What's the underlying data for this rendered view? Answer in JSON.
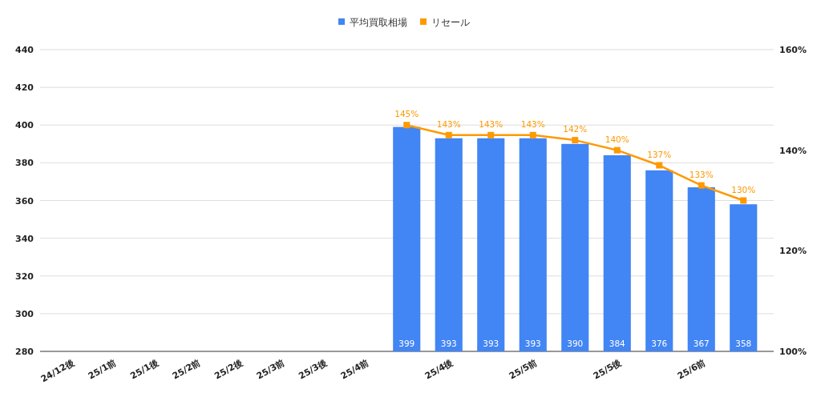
{
  "chart_data": {
    "type": "bar",
    "categories": [
      "24/12後",
      "25/1前",
      "25/1後",
      "25/2前",
      "25/2後",
      "25/3前",
      "25/3後",
      "25/4前",
      null,
      "25/4後",
      null,
      "25/5前",
      null,
      "25/5後",
      null,
      "25/6前",
      null
    ],
    "series": [
      {
        "name": "平均買取相場",
        "color": "#4285f4",
        "values": [
          null,
          null,
          null,
          null,
          null,
          null,
          null,
          null,
          399,
          393,
          393,
          393,
          390,
          384,
          376,
          367,
          358
        ],
        "value_labels": [
          null,
          null,
          null,
          null,
          null,
          null,
          null,
          null,
          "399",
          "393",
          "393",
          "393",
          "390",
          "384",
          "376",
          "367",
          "358"
        ]
      },
      {
        "name": "リセール",
        "type": "line",
        "axis": "y2",
        "color": "#ff9900",
        "marker": "square",
        "values": [
          null,
          null,
          null,
          null,
          null,
          null,
          null,
          null,
          145,
          143,
          143,
          143,
          142,
          140,
          137,
          133,
          130
        ],
        "value_labels": [
          null,
          null,
          null,
          null,
          null,
          null,
          null,
          null,
          "145%",
          "143%",
          "143%",
          "143%",
          "142%",
          "140%",
          "137%",
          "133%",
          "130%"
        ]
      }
    ],
    "ylim": [
      280,
      440
    ],
    "yticks": [
      280,
      300,
      320,
      340,
      360,
      380,
      400,
      420,
      440
    ],
    "y2lim": [
      100,
      160
    ],
    "y2ticks": [
      {
        "value": 100,
        "label": "100%"
      },
      {
        "value": 120,
        "label": "120%"
      },
      {
        "value": 140,
        "label": "140%"
      },
      {
        "value": 160,
        "label": "160%"
      }
    ],
    "grid": "y",
    "legend": "top"
  }
}
